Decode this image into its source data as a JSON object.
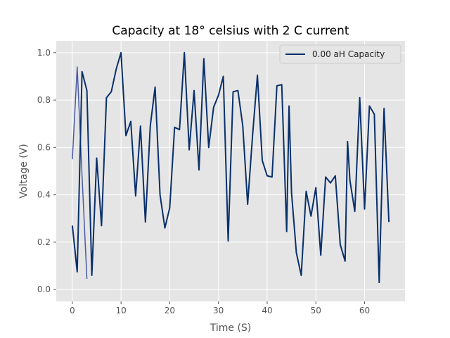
{
  "chart_data": {
    "type": "line",
    "title": "Capacity at 18° celsius with 2 C current",
    "xlabel": "Time (S)",
    "ylabel": "Voltage (V)",
    "xlim": [
      -3.3,
      68.3
    ],
    "ylim": [
      -0.05,
      1.05
    ],
    "xticks": [
      0,
      10,
      20,
      30,
      40,
      50,
      60
    ],
    "yticks": [
      0.0,
      0.2,
      0.4,
      0.6,
      0.8,
      1.0
    ],
    "grid": true,
    "legend_position": "top-right",
    "series": [
      {
        "name": "0.00 aH Capacity",
        "color": "#08306b",
        "in_legend": true,
        "points": [
          [
            0,
            0.27
          ],
          [
            1,
            0.075
          ],
          [
            2,
            0.92
          ],
          [
            3,
            0.84
          ],
          [
            4,
            0.06
          ],
          [
            5,
            0.555
          ],
          [
            6,
            0.27
          ],
          [
            7,
            0.81
          ],
          [
            8,
            0.835
          ],
          [
            9,
            0.93
          ],
          [
            10,
            1.0
          ],
          [
            11,
            0.65
          ],
          [
            12,
            0.71
          ],
          [
            13,
            0.395
          ],
          [
            14,
            0.69
          ],
          [
            15,
            0.285
          ],
          [
            16,
            0.69
          ],
          [
            17,
            0.855
          ],
          [
            18,
            0.4
          ],
          [
            19,
            0.26
          ],
          [
            20,
            0.345
          ],
          [
            21,
            0.685
          ],
          [
            22,
            0.675
          ],
          [
            23,
            1.0
          ],
          [
            24,
            0.59
          ],
          [
            25,
            0.84
          ],
          [
            26,
            0.505
          ],
          [
            27,
            0.975
          ],
          [
            28,
            0.6
          ],
          [
            29,
            0.77
          ],
          [
            30,
            0.82
          ],
          [
            31,
            0.9
          ],
          [
            32,
            0.205
          ],
          [
            33,
            0.835
          ],
          [
            34,
            0.84
          ],
          [
            35,
            0.69
          ],
          [
            36,
            0.36
          ],
          [
            37,
            0.65
          ],
          [
            38,
            0.905
          ],
          [
            39,
            0.545
          ],
          [
            40,
            0.48
          ],
          [
            41,
            0.475
          ],
          [
            42,
            0.86
          ],
          [
            43,
            0.865
          ],
          [
            44,
            0.245
          ],
          [
            44.5,
            0.775
          ],
          [
            45,
            0.41
          ],
          [
            46,
            0.155
          ],
          [
            47,
            0.06
          ],
          [
            48,
            0.415
          ],
          [
            49,
            0.31
          ],
          [
            50,
            0.43
          ],
          [
            51,
            0.145
          ],
          [
            52,
            0.475
          ],
          [
            53,
            0.45
          ],
          [
            54,
            0.48
          ],
          [
            55,
            0.19
          ],
          [
            56,
            0.12
          ],
          [
            56.5,
            0.625
          ],
          [
            57,
            0.46
          ],
          [
            58,
            0.33
          ],
          [
            59,
            0.81
          ],
          [
            60,
            0.34
          ],
          [
            61,
            0.775
          ],
          [
            62,
            0.74
          ],
          [
            63,
            0.03
          ],
          [
            64,
            0.765
          ],
          [
            65,
            0.285
          ]
        ]
      },
      {
        "name": "",
        "color": "#4a5ba8",
        "in_legend": false,
        "points": [
          [
            0,
            0.55
          ],
          [
            1,
            0.94
          ],
          [
            2,
            0.48
          ],
          [
            3,
            0.045
          ]
        ]
      }
    ]
  }
}
